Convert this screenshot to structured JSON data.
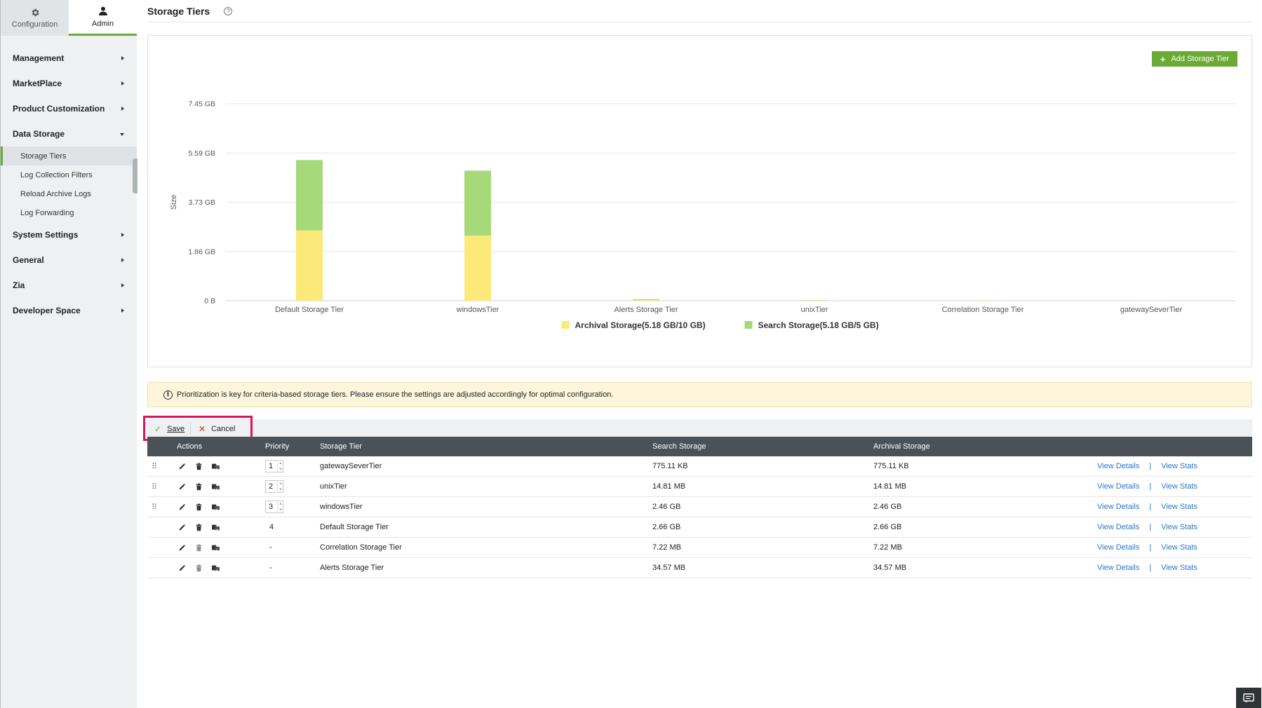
{
  "sidebar": {
    "tabs": [
      {
        "label": "Configuration",
        "icon": "gear-icon",
        "active": false
      },
      {
        "label": "Admin",
        "icon": "user-icon",
        "active": true
      }
    ],
    "items": [
      {
        "label": "Management"
      },
      {
        "label": "MarketPlace"
      },
      {
        "label": "Product Customization"
      },
      {
        "label": "Data Storage",
        "expanded": true,
        "children": [
          {
            "label": "Storage Tiers",
            "active": true
          },
          {
            "label": "Log Collection Filters"
          },
          {
            "label": "Reload Archive Logs"
          },
          {
            "label": "Log Forwarding"
          }
        ]
      },
      {
        "label": "System Settings"
      },
      {
        "label": "General"
      },
      {
        "label": "Zia"
      },
      {
        "label": "Developer Space"
      }
    ]
  },
  "header": {
    "title": "Storage Tiers",
    "help": "?"
  },
  "chart_panel": {
    "add_button_label": "Add Storage Tier"
  },
  "chart_data": {
    "type": "bar",
    "stacked": true,
    "categories": [
      "Default Storage Tier",
      "windowsTier",
      "Alerts Storage Tier",
      "unixTier",
      "Correlation Storage Tier",
      "gatewaySeverTier"
    ],
    "series": [
      {
        "name": "Archival Storage(5.18 GB/10 GB)",
        "color": "#fbe97a",
        "values": [
          2.66,
          2.46,
          0.03,
          0.01,
          0.007,
          0.001
        ]
      },
      {
        "name": "Search Storage(5.18 GB/5 GB)",
        "color": "#a6d97a",
        "values": [
          2.66,
          2.46,
          0.03,
          0.01,
          0.007,
          0.001
        ]
      }
    ],
    "ylabel": "Size",
    "yticks": [
      "0 B",
      "1.86 GB",
      "3.73 GB",
      "5.59 GB",
      "7.45 GB"
    ],
    "ylim": [
      0,
      7.45
    ],
    "grid": true,
    "legend_position": "bottom-center"
  },
  "info": {
    "icon": "info-icon",
    "text": "Prioritization is key for criteria-based storage tiers. Please ensure the settings are adjusted accordingly for optimal configuration."
  },
  "actions": {
    "save_label": "Save",
    "cancel_label": "Cancel"
  },
  "table": {
    "headers": {
      "actions": "Actions",
      "priority": "Priority",
      "tier": "Storage Tier",
      "search": "Search Storage",
      "archival": "Archival Storage"
    },
    "rows": [
      {
        "priority": "1",
        "editable_priority": true,
        "draggable": true,
        "tier": "gatewaySeverTier",
        "search": "775.11 KB",
        "archival": "775.11 KB"
      },
      {
        "priority": "2",
        "editable_priority": true,
        "draggable": true,
        "tier": "unixTier",
        "search": "14.81 MB",
        "archival": "14.81 MB"
      },
      {
        "priority": "3",
        "editable_priority": true,
        "draggable": true,
        "tier": "windowsTier",
        "search": "2.46 GB",
        "archival": "2.46 GB"
      },
      {
        "priority": "4",
        "editable_priority": false,
        "draggable": false,
        "tier": "Default Storage Tier",
        "search": "2.66 GB",
        "archival": "2.66 GB"
      },
      {
        "priority": "-",
        "editable_priority": false,
        "draggable": false,
        "tier": "Correlation Storage Tier",
        "search": "7.22 MB",
        "archival": "7.22 MB"
      },
      {
        "priority": "-",
        "editable_priority": false,
        "draggable": false,
        "tier": "Alerts Storage Tier",
        "search": "34.57 MB",
        "archival": "34.57 MB"
      }
    ],
    "view_details_label": "View Details",
    "view_stats_label": "View Stats",
    "separator": "|"
  }
}
